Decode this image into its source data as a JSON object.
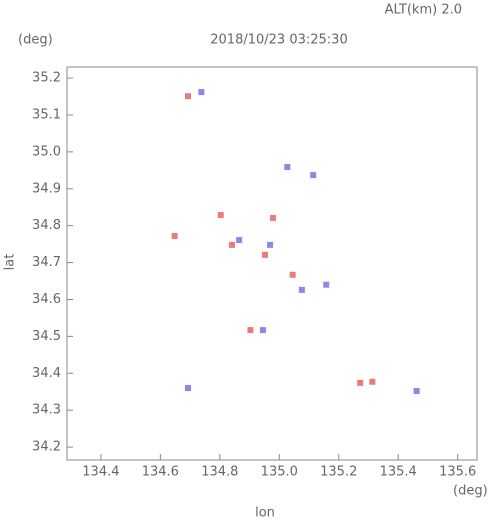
{
  "chart_data": {
    "type": "scatter",
    "title": "2018/10/23 03:25:30",
    "subtitle": "ALT(km) 2.0",
    "y_unit": "(deg)",
    "x_unit": "(deg)",
    "x_label": "lon",
    "y_label": "lat",
    "xlim": [
      134.286,
      135.665
    ],
    "ylim": [
      34.165,
      35.23
    ],
    "xticks": [
      {
        "value": 134.4,
        "label": "134.4"
      },
      {
        "value": 134.6,
        "label": "134.6"
      },
      {
        "value": 134.8,
        "label": "134.8"
      },
      {
        "value": 135.0,
        "label": "135.0"
      },
      {
        "value": 135.2,
        "label": "135.2"
      },
      {
        "value": 135.4,
        "label": "135.4"
      },
      {
        "value": 135.6,
        "label": "135.6"
      }
    ],
    "yticks": [
      {
        "value": 34.2,
        "label": "34.2"
      },
      34.3,
      34.4,
      34.5,
      34.6,
      34.7,
      34.8,
      34.9,
      {
        "value": 35.0,
        "label": "35.0"
      },
      35.1,
      35.2
    ],
    "series": [
      {
        "color": "#e85a5a",
        "x": [
          134.693,
          134.803,
          134.648,
          134.841,
          134.979,
          135.045,
          134.903,
          135.272,
          135.313,
          134.952
        ],
        "values": [
          35.151,
          34.829,
          34.772,
          34.748,
          34.821,
          34.667,
          34.517,
          34.374,
          34.377,
          34.721
        ]
      },
      {
        "color": "#6a6ae8",
        "x": [
          134.738,
          135.027,
          135.114,
          134.693,
          135.462,
          134.969,
          135.076,
          135.158,
          134.945,
          134.865
        ],
        "values": [
          35.162,
          34.959,
          34.937,
          34.36,
          34.352,
          34.748,
          34.626,
          34.64,
          34.517,
          34.761
        ]
      }
    ]
  }
}
